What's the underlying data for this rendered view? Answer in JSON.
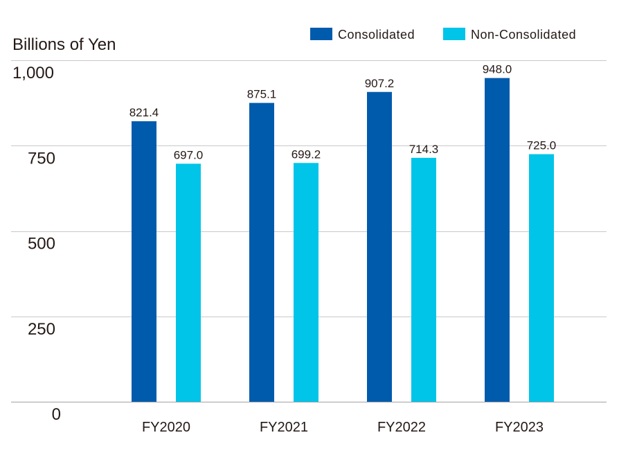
{
  "colors": {
    "consolidated": "#005bac",
    "non_consolidated": "#00c4e8",
    "gridline": "#c8c8c8",
    "baseline": "#a0a0a0"
  },
  "chart_data": {
    "type": "bar",
    "ylabel": "Billions of Yen",
    "ylim": [
      0,
      1000
    ],
    "yticks": [
      0,
      250,
      500,
      750,
      1000
    ],
    "ytick_labels": [
      "0",
      "250",
      "500",
      "750",
      "1,000"
    ],
    "grid": true,
    "legend_position": "top-right",
    "categories": [
      "FY2020",
      "FY2021",
      "FY2022",
      "FY2023"
    ],
    "series": [
      {
        "name": "Consolidated",
        "values": [
          821.4,
          875.1,
          907.2,
          948.0
        ],
        "labels": [
          "821.4",
          "875.1",
          "907.2",
          "948.0"
        ]
      },
      {
        "name": "Non-Consolidated",
        "values": [
          697.0,
          699.2,
          714.3,
          725.0
        ],
        "labels": [
          "697.0",
          "699.2",
          "714.3",
          "725.0"
        ]
      }
    ]
  }
}
